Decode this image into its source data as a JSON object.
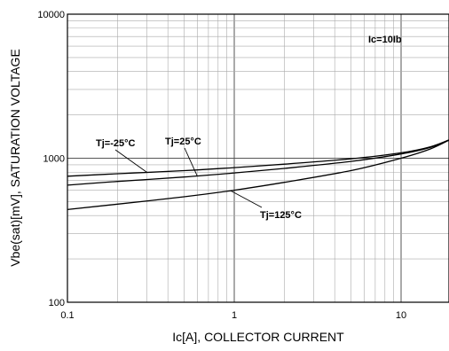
{
  "chart_data": {
    "type": "line",
    "title": "",
    "xlabel": "Ic[A], COLLECTOR CURRENT",
    "ylabel": "Vbe(sat)[mV], SATURATION VOLTAGE",
    "x_scale": "log",
    "y_scale": "log",
    "xlim": [
      0.1,
      20
    ],
    "ylim": [
      100,
      10000
    ],
    "x_ticks": [
      {
        "value": 0.1,
        "label": "0.1"
      },
      {
        "value": 1,
        "label": "1"
      },
      {
        "value": 10,
        "label": "10"
      }
    ],
    "y_ticks": [
      {
        "value": 100,
        "label": "100"
      },
      {
        "value": 1000,
        "label": "1000"
      },
      {
        "value": 10000,
        "label": "10000"
      }
    ],
    "grid": true,
    "annotation": "Ic=10Ib",
    "series": [
      {
        "name": "Tj=-25°C",
        "x": [
          0.1,
          0.2,
          0.5,
          1,
          2,
          5,
          10,
          15,
          20
        ],
        "y": [
          750,
          780,
          820,
          860,
          910,
          990,
          1090,
          1200,
          1360
        ]
      },
      {
        "name": "Tj=25°C",
        "x": [
          0.1,
          0.2,
          0.5,
          1,
          2,
          5,
          10,
          15,
          20
        ],
        "y": [
          650,
          690,
          740,
          790,
          850,
          950,
          1070,
          1190,
          1360
        ]
      },
      {
        "name": "Tj=125°C",
        "x": [
          0.1,
          0.2,
          0.5,
          1,
          2,
          5,
          10,
          15,
          20
        ],
        "y": [
          440,
          480,
          540,
          600,
          680,
          820,
          1000,
          1160,
          1360
        ]
      }
    ]
  }
}
